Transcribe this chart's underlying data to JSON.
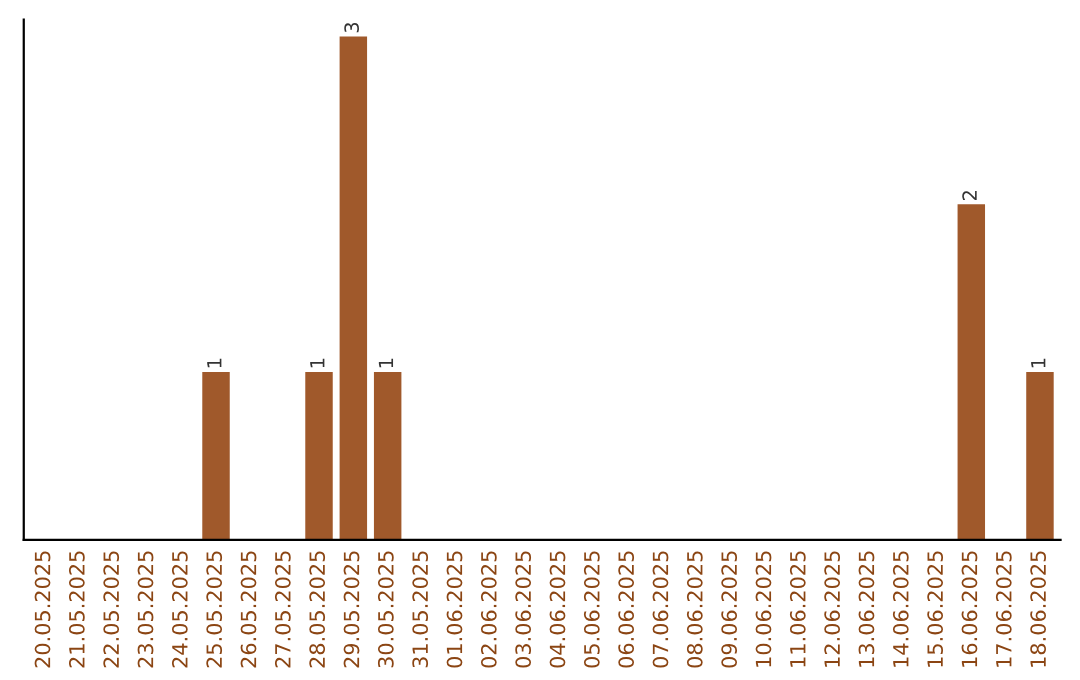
{
  "chart_data": {
    "type": "bar",
    "categories": [
      "20.05.2025",
      "21.05.2025",
      "22.05.2025",
      "23.05.2025",
      "24.05.2025",
      "25.05.2025",
      "26.05.2025",
      "27.05.2025",
      "28.05.2025",
      "29.05.2025",
      "30.05.2025",
      "31.05.2025",
      "01.06.2025",
      "02.06.2025",
      "03.06.2025",
      "04.06.2025",
      "05.06.2025",
      "06.06.2025",
      "07.06.2025",
      "08.06.2025",
      "09.06.2025",
      "10.06.2025",
      "11.06.2025",
      "12.06.2025",
      "13.06.2025",
      "14.06.2025",
      "15.06.2025",
      "16.06.2025",
      "17.06.2025",
      "18.06.2025"
    ],
    "values": [
      0,
      0,
      0,
      0,
      0,
      1,
      0,
      0,
      1,
      3,
      1,
      0,
      0,
      0,
      0,
      0,
      0,
      0,
      0,
      0,
      0,
      0,
      0,
      0,
      0,
      0,
      0,
      2,
      0,
      1
    ],
    "value_labels": [
      null,
      null,
      null,
      null,
      null,
      "1",
      null,
      null,
      "1",
      "3",
      "1",
      null,
      null,
      null,
      null,
      null,
      null,
      null,
      null,
      null,
      null,
      null,
      null,
      null,
      null,
      null,
      null,
      "2",
      null,
      "1"
    ],
    "color": "#a0592b",
    "ylim": [
      0,
      3.1
    ],
    "tick_labels": "x",
    "grid": false,
    "legend": false
  }
}
